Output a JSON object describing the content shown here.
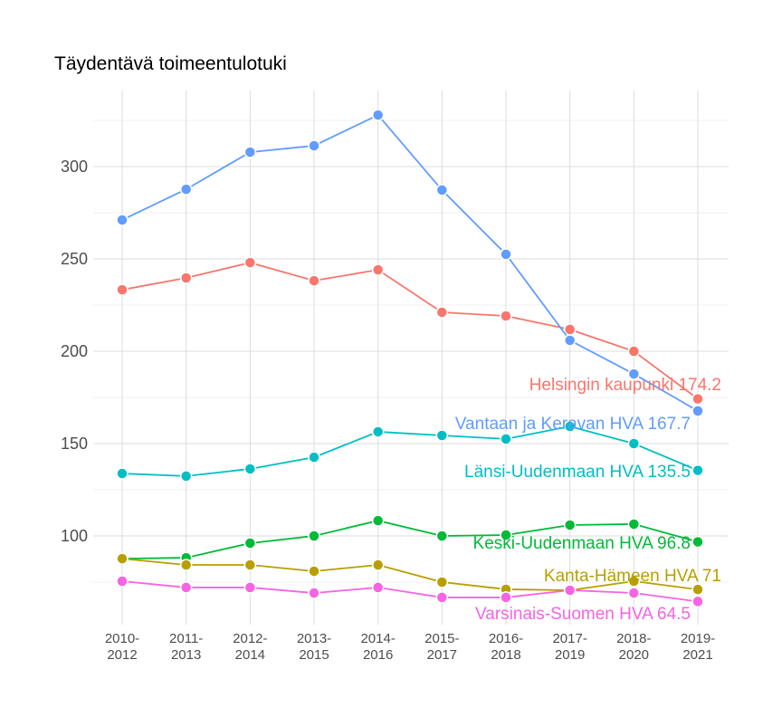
{
  "chart_data": {
    "type": "line",
    "title": "Täydentävä toimeentulotuki",
    "xlabel": "",
    "ylabel": "",
    "categories": [
      "2010-\n2012",
      "2011-\n2013",
      "2012-\n2014",
      "2013-\n2015",
      "2014-\n2016",
      "2015-\n2017",
      "2016-\n2018",
      "2017-\n2019",
      "2018-\n2020",
      "2019-\n2021"
    ],
    "ylim": [
      47,
      336
    ],
    "yticks": [
      100,
      150,
      200,
      250,
      300
    ],
    "grid": true,
    "legend": "none (direct labels at line ends)",
    "series": [
      {
        "name": "Helsingin kaupunki",
        "end_label": "Helsingin kaupunki 174.2",
        "color": "#F8766D",
        "values": [
          233.3,
          239.7,
          248.0,
          238.2,
          244.1,
          221.1,
          219.1,
          211.8,
          200.0,
          174.2
        ]
      },
      {
        "name": "Vantaan ja Keravan HVA",
        "end_label": "Vantaan ja Keravan HVA 167.7",
        "color": "#619CFF",
        "values": [
          271.1,
          287.7,
          307.8,
          311.3,
          327.9,
          287.3,
          252.5,
          205.9,
          187.7,
          167.7
        ]
      },
      {
        "name": "Länsi-Uudenmaan HVA",
        "end_label": "Länsi-Uudenmaan HVA 135.5",
        "color": "#00BFC4",
        "values": [
          133.8,
          132.4,
          136.3,
          142.6,
          156.4,
          154.4,
          152.5,
          159.3,
          150.0,
          135.5
        ]
      },
      {
        "name": "Keski-Uudenmaan HVA",
        "end_label": "Keski-Uudenmaan HVA 96.8",
        "color": "#00BA38",
        "values": [
          87.7,
          88.2,
          96.1,
          100.0,
          108.3,
          100.0,
          100.5,
          105.9,
          106.4,
          96.8
        ]
      },
      {
        "name": "Kanta-Hämeen HVA",
        "end_label": "Kanta-Hämeen HVA 71",
        "color": "#B79F00",
        "values": [
          87.7,
          84.3,
          84.3,
          80.9,
          84.3,
          75.0,
          71.1,
          70.6,
          75.5,
          71.0
        ]
      },
      {
        "name": "Varsinais-Suomen HVA",
        "end_label": "Varsinais-Suomen HVA 64.5",
        "color": "#F564E3",
        "values": [
          75.5,
          72.1,
          72.1,
          69.1,
          72.1,
          66.7,
          66.7,
          70.6,
          69.1,
          64.5
        ]
      }
    ]
  }
}
